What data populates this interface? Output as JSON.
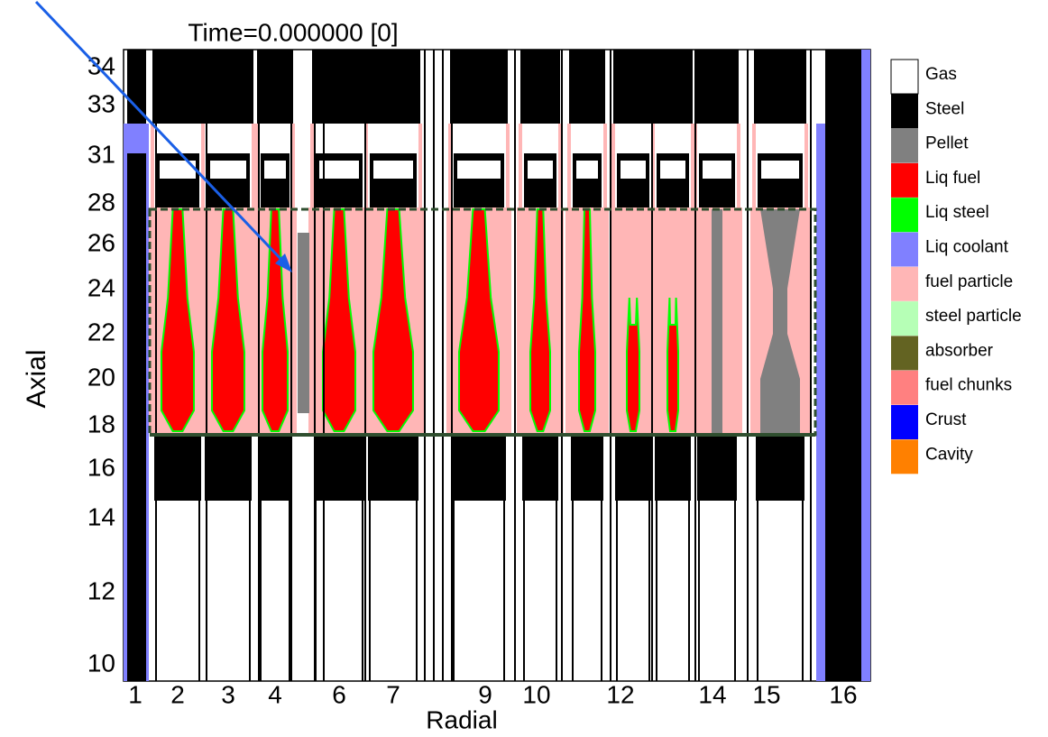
{
  "figure": {
    "title": "Time=0.000000 [0]",
    "x_label": "Radial",
    "y_label": "Axial",
    "x_tick_labels": [
      "1",
      "2",
      "3",
      "4",
      "6",
      "7",
      "9",
      "10",
      "12",
      "14",
      "15",
      "16"
    ],
    "y_tick_labels": [
      "34",
      "33",
      "31",
      "28",
      "26",
      "24",
      "22",
      "20",
      "18",
      "16",
      "14",
      "12",
      "10"
    ],
    "legend": [
      {
        "label": "Gas",
        "color": "#ffffff"
      },
      {
        "label": "Steel",
        "color": "#000000"
      },
      {
        "label": "Pellet",
        "color": "#808080"
      },
      {
        "label": "Liq fuel",
        "color": "#ff0000"
      },
      {
        "label": "Liq steel",
        "color": "#00ff00"
      },
      {
        "label": "Liq coolant",
        "color": "#8080ff"
      },
      {
        "label": "fuel particle",
        "color": "#ffb6b6"
      },
      {
        "label": "steel particle",
        "color": "#b6ffb6"
      },
      {
        "label": "absorber",
        "color": "#636322"
      },
      {
        "label": "fuel chunks",
        "color": "#ff8080"
      },
      {
        "label": "Crust",
        "color": "#0000ff"
      },
      {
        "label": "Cavity",
        "color": "#ff8000"
      }
    ]
  }
}
